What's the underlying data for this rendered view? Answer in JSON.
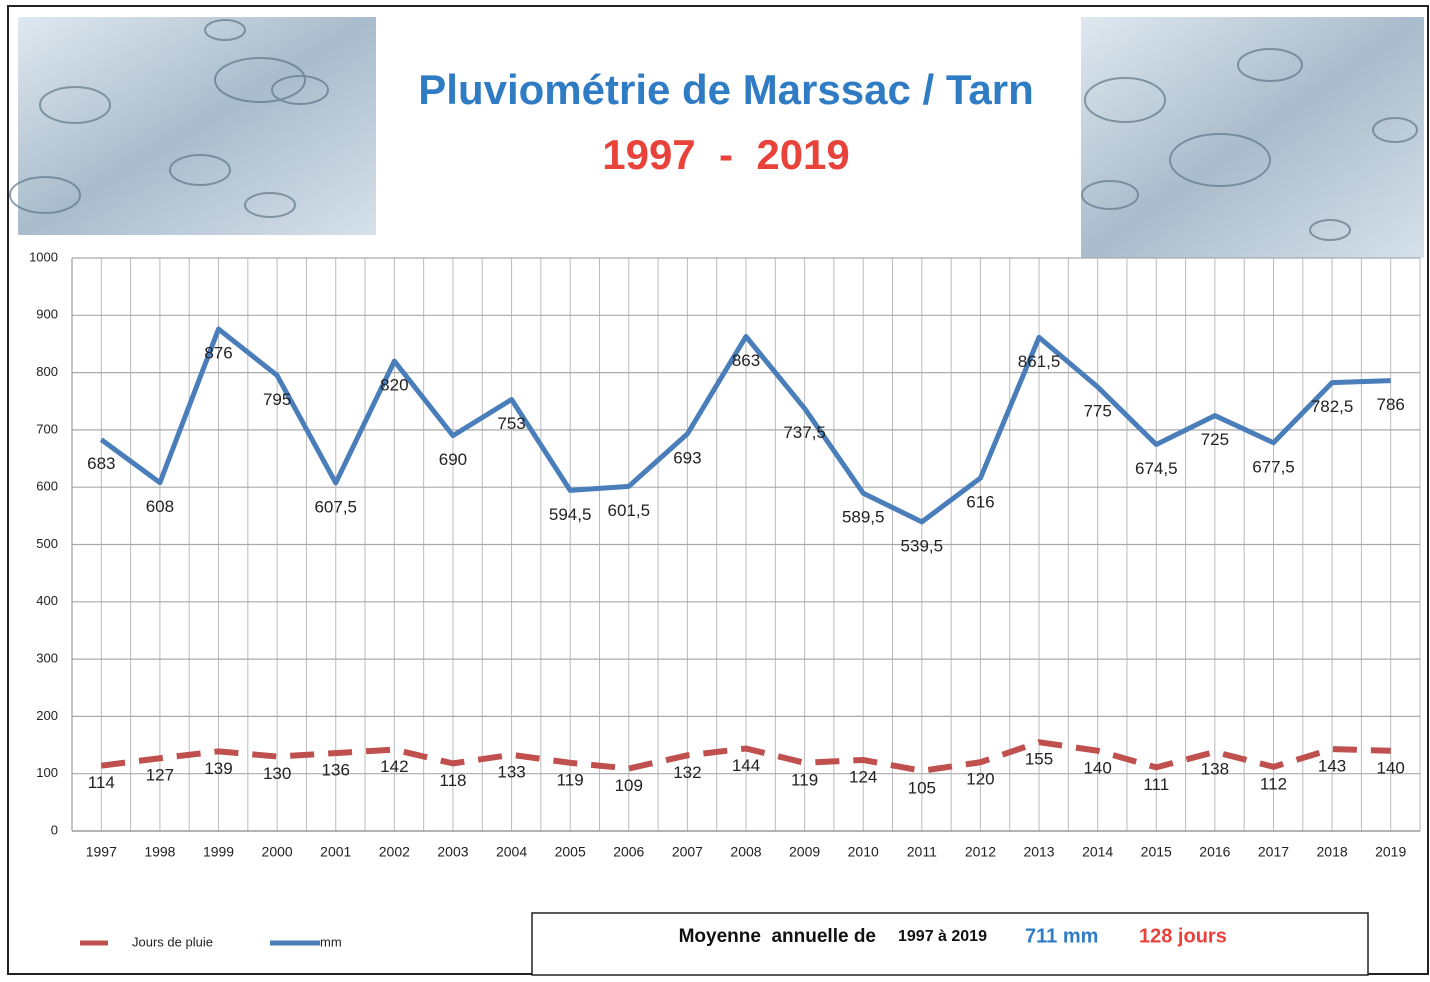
{
  "chart_data": {
    "type": "line",
    "title": "Pluviométrie de Marssac / Tarn",
    "subtitle": "1997  -  2019",
    "categories": [
      "1997",
      "1998",
      "1999",
      "2000",
      "2001",
      "2002",
      "2003",
      "2004",
      "2005",
      "2006",
      "2007",
      "2008",
      "2009",
      "2010",
      "2011",
      "2012",
      "2013",
      "2014",
      "2015",
      "2016",
      "2017",
      "2018",
      "2019"
    ],
    "series": [
      {
        "name": "Jours de pluie",
        "color": "#c0504d",
        "dashed": true,
        "values": [
          114,
          127,
          139,
          130,
          136,
          142,
          118,
          133,
          119,
          109,
          132,
          144,
          119,
          124,
          105,
          120,
          155,
          140,
          111,
          138,
          112,
          143,
          140
        ]
      },
      {
        "name": "mm",
        "color": "#4a7ebb",
        "dashed": false,
        "values": [
          683,
          608,
          876,
          795,
          607.5,
          820,
          690,
          753,
          594.5,
          601.5,
          693,
          863,
          737.5,
          589.5,
          539.5,
          616,
          861.5,
          775,
          674.5,
          725,
          677.5,
          782.5,
          786
        ],
        "value_labels": [
          "683",
          "608",
          "876",
          "795",
          "607,5",
          "820",
          "690",
          "753",
          "594,5",
          "601,5",
          "693",
          "863",
          "737,5",
          "589,5",
          "539,5",
          "616",
          "861,5",
          "775",
          "674,5",
          "725",
          "677,5",
          "782,5",
          "786"
        ]
      }
    ],
    "ylim": [
      0,
      1000
    ],
    "yticks": [
      0,
      100,
      200,
      300,
      400,
      500,
      600,
      700,
      800,
      900,
      1000
    ],
    "grid": true,
    "legend": "bottom-left",
    "summary": {
      "label": "Moyenne  annuelle de",
      "period": "1997 à 2019",
      "mm": "711 mm",
      "days": "128 jours"
    }
  }
}
